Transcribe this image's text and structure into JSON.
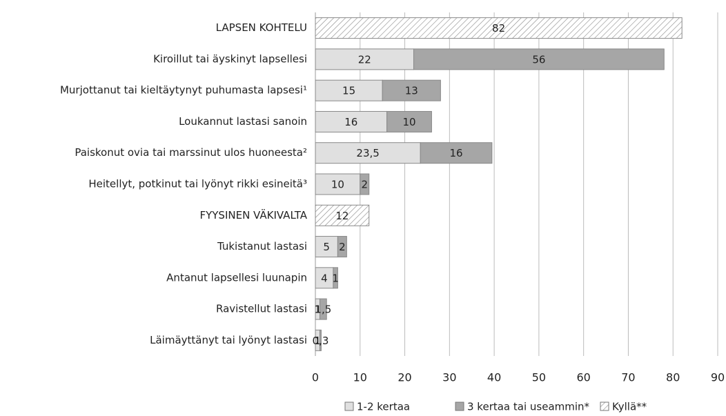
{
  "chart_data": {
    "type": "bar",
    "orientation": "horizontal",
    "stacked": true,
    "categories": [
      "LAPSEN KOHTELU",
      "Kiroillut tai äyskinyt lapsellesi",
      "Murjottanut tai kieltäytynyt puhumasta lapsesi¹",
      "Loukannut lastasi sanoin",
      "Paiskonut ovia tai marssinut ulos huoneesta²",
      "Heitellyt, potkinut tai lyönyt rikki esineitä³",
      "FYYSINEN VÄKIVALTA",
      "Tukistanut lastasi",
      "Antanut lapsellesi luunapin",
      "Ravistellut lastasi",
      "Läimäyttänyt tai lyönyt lastasi"
    ],
    "series": [
      {
        "name": "1-2 kertaa",
        "color": "#e0e0e0",
        "values": [
          null,
          22,
          15,
          16,
          23.5,
          10,
          null,
          5,
          4,
          1,
          1
        ],
        "value_labels": [
          null,
          "22",
          "15",
          "16",
          "23,5",
          "10",
          null,
          "5",
          "4",
          "1",
          "1"
        ]
      },
      {
        "name": "3 kertaa tai useammin*",
        "color": "#a6a6a6",
        "values": [
          null,
          56,
          13,
          10,
          16,
          2,
          null,
          2,
          1,
          1.5,
          0.3
        ],
        "value_labels": [
          null,
          "56",
          "13",
          "10",
          "16",
          "2",
          null,
          "2",
          "1",
          "1,5",
          "0,3"
        ]
      },
      {
        "name": "Kyllä**",
        "color": "#ffffff",
        "pattern": "hatch",
        "values": [
          82,
          null,
          null,
          null,
          null,
          null,
          12,
          null,
          null,
          null,
          null
        ],
        "value_labels": [
          "82",
          null,
          null,
          null,
          null,
          null,
          "12",
          null,
          null,
          null,
          null
        ]
      }
    ],
    "xlim": [
      0,
      90
    ],
    "xticks": [
      0,
      10,
      20,
      30,
      40,
      50,
      60,
      70,
      80,
      90
    ],
    "grid": true
  }
}
